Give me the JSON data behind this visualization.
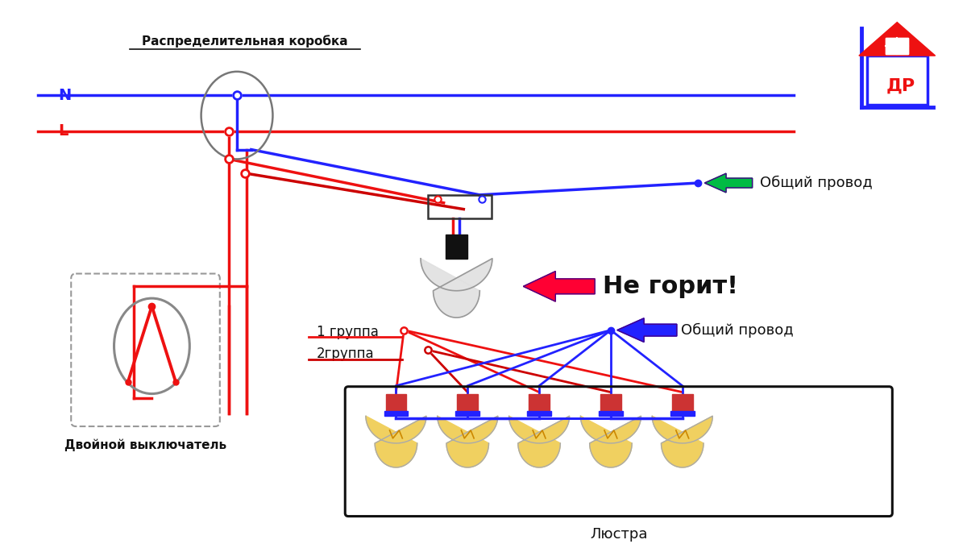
{
  "bg_color": "#ffffff",
  "blue": "#2222ff",
  "red": "#ee1111",
  "dark_red": "#cc0000",
  "green": "#00bb44",
  "gray": "#888888",
  "black": "#111111",
  "label_N": "N",
  "label_L": "L",
  "label_box": "Распределительная коробка",
  "label_switch": "Двойной выключатель",
  "label_chandelier": "Люстра",
  "label_common1": "Общий провод",
  "label_common2": "Общий провод",
  "label_not_burning": "Не горит!",
  "label_group1": "1 группа",
  "label_group2": "2группа"
}
